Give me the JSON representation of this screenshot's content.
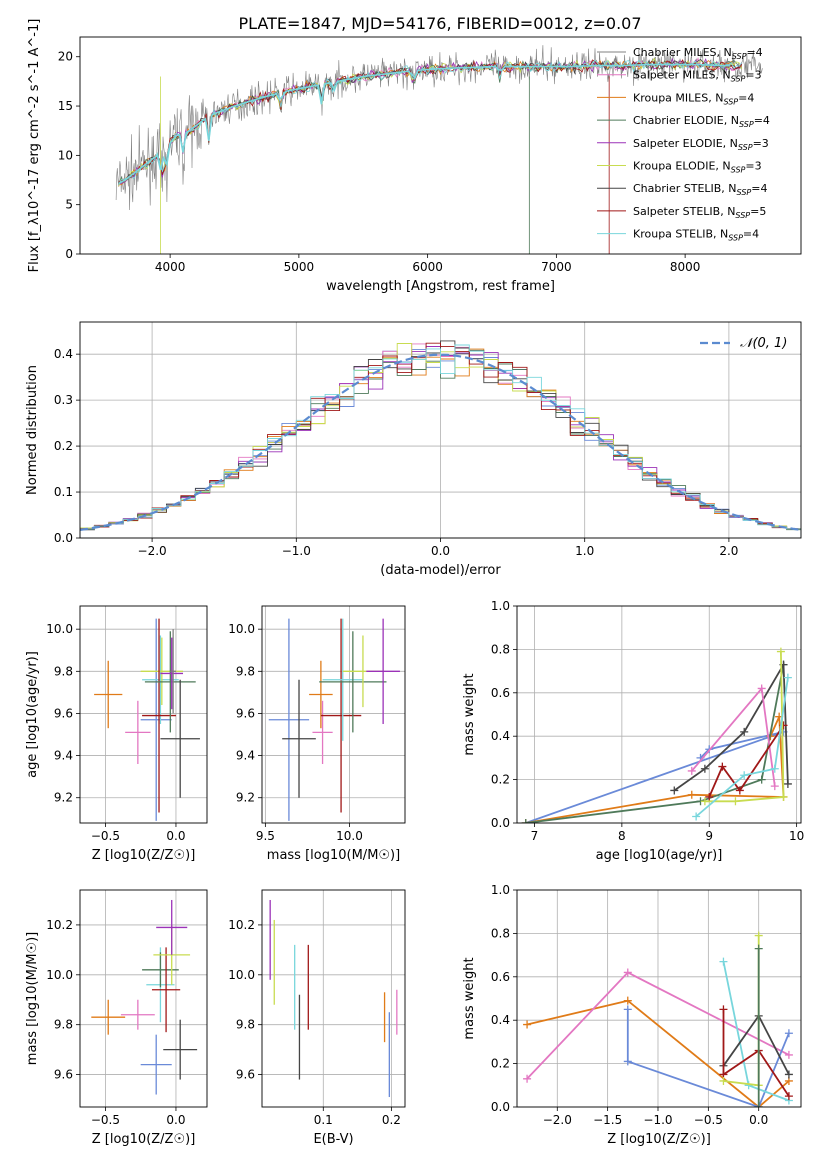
{
  "figure": {
    "title": "PLATE=1847, MJD=54176, FIBERID=0012, z=0.07"
  },
  "models": [
    {
      "name": "Chabrier MILES",
      "nssp": "4",
      "color": "#808080"
    },
    {
      "name": "Salpeter MILES",
      "nssp": "3",
      "color": "#e377c2"
    },
    {
      "name": "Kroupa MILES",
      "nssp": "4",
      "color": "#e07b18"
    },
    {
      "name": "Chabrier ELODIE",
      "nssp": "4",
      "color": "#4f7a5a"
    },
    {
      "name": "Salpeter ELODIE",
      "nssp": "3",
      "color": "#9b32b8"
    },
    {
      "name": "Kroupa ELODIE",
      "nssp": "3",
      "color": "#c8dc50"
    },
    {
      "name": "Chabrier STELIB",
      "nssp": "4",
      "color": "#454545"
    },
    {
      "name": "Salpeter STELIB",
      "nssp": "5",
      "color": "#a01818"
    },
    {
      "name": "Kroupa STELIB",
      "nssp": "4",
      "color": "#78d6dc"
    }
  ],
  "extra_colors": {
    "blue": "#6a8ad8",
    "normal_curve": "#5b8bd0"
  },
  "chart_data": [
    {
      "id": "spectrum",
      "type": "line",
      "xlabel": "wavelength [Angstrom, rest frame]",
      "ylabel": "Flux [f_λ10^-17 erg cm^-2 s^-1 A^-1]",
      "xlim": [
        3300,
        8900
      ],
      "ylim": [
        0,
        22
      ],
      "xticks": [
        4000,
        5000,
        6000,
        7000,
        8000
      ],
      "yticks": [
        0,
        5,
        10,
        15,
        20
      ],
      "legend": "upper right",
      "continuum": {
        "x": [
          3580,
          3650,
          3750,
          3850,
          3950,
          4050,
          4150,
          4300,
          4500,
          4700,
          4900,
          5100,
          5300,
          5500,
          5700,
          5900,
          6100,
          6300,
          6500,
          6700,
          6900,
          7100,
          7300,
          7500,
          7700,
          7900,
          8100,
          8300,
          8500,
          8600
        ],
        "y": [
          7.0,
          7.5,
          8.5,
          9.5,
          10.5,
          12.0,
          12.5,
          14.0,
          15.0,
          15.8,
          16.5,
          17.0,
          17.5,
          18.0,
          18.3,
          18.6,
          18.8,
          18.9,
          19.0,
          19.0,
          19.0,
          19.0,
          19.1,
          19.1,
          19.2,
          19.2,
          19.2,
          19.1,
          19.0,
          19.0
        ]
      }
    },
    {
      "id": "residuals",
      "type": "step",
      "xlabel": "(data-model)/error",
      "ylabel": "Normed distribution",
      "xlim": [
        -2.5,
        2.5
      ],
      "ylim": [
        0,
        0.47
      ],
      "xticks": [
        -2,
        -1,
        0,
        1,
        2
      ],
      "yticks": [
        0.0,
        0.1,
        0.2,
        0.3,
        0.4
      ],
      "bin_width": 0.1,
      "normal_label": "𝒩(0, 1)",
      "legend": "upper right"
    },
    {
      "id": "age_vs_Z",
      "type": "errorbar",
      "xlabel": "Z [log10(Z/Z☉)]",
      "ylabel": "age  [log10(age/yr)]",
      "xlim": [
        -0.68,
        0.22
      ],
      "ylim": [
        9.08,
        10.11
      ],
      "xticks": [
        -0.5,
        0.0
      ],
      "yticks": [
        9.2,
        9.4,
        9.6,
        9.8,
        10.0
      ],
      "points": [
        {
          "c": 2,
          "x": -0.48,
          "xe": 0.1,
          "y": 9.69,
          "ye": 0.16
        },
        {
          "c": 1,
          "x": -0.27,
          "xe": 0.09,
          "y": 9.51,
          "ye": 0.15
        },
        {
          "c": 9,
          "x": -0.14,
          "xe": 0.11,
          "y": 9.57,
          "ye": 0.48
        },
        {
          "c": 8,
          "x": -0.11,
          "xe": 0.13,
          "y": 9.76,
          "ye": 0.21
        },
        {
          "c": 5,
          "x": -0.1,
          "xe": 0.15,
          "y": 9.8,
          "ye": 0.16
        },
        {
          "c": 7,
          "x": -0.12,
          "xe": 0.12,
          "y": 9.59,
          "ye": 0.46
        },
        {
          "c": 3,
          "x": -0.04,
          "xe": 0.18,
          "y": 9.75,
          "ye": 0.24
        },
        {
          "c": 4,
          "x": -0.03,
          "xe": 0.08,
          "y": 9.79,
          "ye": 0.17
        },
        {
          "c": 6,
          "x": 0.03,
          "xe": 0.14,
          "y": 9.48,
          "ye": 0.28
        },
        {
          "c": 0,
          "x": -0.02,
          "xe": 0.02,
          "y": 9.8,
          "ye": 0.2
        }
      ]
    },
    {
      "id": "age_vs_mass",
      "type": "errorbar",
      "xlabel": "mass [log10(M/M☉)]",
      "ylabel": "",
      "xlim": [
        9.48,
        10.33
      ],
      "ylim": [
        9.08,
        10.11
      ],
      "xticks": [
        9.5,
        10.0
      ],
      "yticks": [
        9.2,
        9.4,
        9.6,
        9.8,
        10.0
      ],
      "points": [
        {
          "c": 9,
          "x": 9.64,
          "xe": 0.12,
          "y": 9.57,
          "ye": 0.48
        },
        {
          "c": 6,
          "x": 9.7,
          "xe": 0.1,
          "y": 9.48,
          "ye": 0.28
        },
        {
          "c": 2,
          "x": 9.83,
          "xe": 0.07,
          "y": 9.69,
          "ye": 0.16
        },
        {
          "c": 1,
          "x": 9.84,
          "xe": 0.06,
          "y": 9.51,
          "ye": 0.15
        },
        {
          "c": 7,
          "x": 9.95,
          "xe": 0.12,
          "y": 9.59,
          "ye": 0.46
        },
        {
          "c": 8,
          "x": 9.96,
          "xe": 0.12,
          "y": 9.76,
          "ye": 0.29
        },
        {
          "c": 3,
          "x": 10.02,
          "xe": 0.2,
          "y": 9.75,
          "ye": 0.24
        },
        {
          "c": 5,
          "x": 10.08,
          "xe": 0.12,
          "y": 9.8,
          "ye": 0.17
        },
        {
          "c": 4,
          "x": 10.2,
          "xe": 0.1,
          "y": 9.8,
          "ye": 0.25
        }
      ]
    },
    {
      "id": "weight_vs_age",
      "type": "line",
      "xlabel": "age  [log10(age/yr)]",
      "ylabel": "mass weight",
      "xlim": [
        6.8,
        10.05
      ],
      "ylim": [
        0,
        1
      ],
      "xticks": [
        7,
        8,
        9,
        10
      ],
      "yticks": [
        0.0,
        0.2,
        0.4,
        0.6,
        0.8,
        1.0
      ],
      "series": [
        {
          "c": 9,
          "x": [
            6.9,
            9.85,
            9.0,
            8.9
          ],
          "y": [
            0.0,
            0.42,
            0.34,
            0.3
          ]
        },
        {
          "c": 2,
          "x": [
            6.9,
            8.8,
            9.85,
            9.8,
            9.7
          ],
          "y": [
            0.0,
            0.13,
            0.12,
            0.49,
            0.4
          ]
        },
        {
          "c": 3,
          "x": [
            6.9,
            8.9,
            9.6,
            9.85
          ],
          "y": [
            0.0,
            0.1,
            0.2,
            0.73
          ]
        },
        {
          "c": 6,
          "x": [
            8.6,
            8.95,
            9.4,
            9.85,
            9.9
          ],
          "y": [
            0.15,
            0.25,
            0.42,
            0.73,
            0.18
          ]
        },
        {
          "c": 1,
          "x": [
            8.8,
            9.6,
            9.75
          ],
          "y": [
            0.24,
            0.62,
            0.17
          ]
        },
        {
          "c": 7,
          "x": [
            9.0,
            9.15,
            9.35,
            9.85
          ],
          "y": [
            0.12,
            0.26,
            0.15,
            0.45
          ]
        },
        {
          "c": 5,
          "x": [
            8.95,
            9.3,
            9.85,
            9.82
          ],
          "y": [
            0.1,
            0.1,
            0.12,
            0.79
          ]
        },
        {
          "c": 8,
          "x": [
            8.85,
            9.4,
            9.75,
            9.9
          ],
          "y": [
            0.03,
            0.22,
            0.25,
            0.67
          ]
        }
      ]
    },
    {
      "id": "mass_vs_Z",
      "type": "errorbar",
      "xlabel": "Z [log10(Z/Z☉)]",
      "ylabel": "mass [log10(M/M☉)]",
      "xlim": [
        -0.68,
        0.22
      ],
      "ylim": [
        9.47,
        10.34
      ],
      "xticks": [
        -0.5,
        0.0
      ],
      "yticks": [
        9.6,
        9.8,
        10.0,
        10.2
      ],
      "points": [
        {
          "c": 2,
          "x": -0.48,
          "xe": 0.12,
          "y": 9.83,
          "ye": 0.07
        },
        {
          "c": 1,
          "x": -0.27,
          "xe": 0.12,
          "y": 9.84,
          "ye": 0.06
        },
        {
          "c": 9,
          "x": -0.14,
          "xe": 0.11,
          "y": 9.64,
          "ye": 0.12
        },
        {
          "c": 8,
          "x": -0.11,
          "xe": 0.1,
          "y": 9.96,
          "ye": 0.15
        },
        {
          "c": 3,
          "x": -0.11,
          "xe": 0.13,
          "y": 10.02,
          "ye": 0.07
        },
        {
          "c": 7,
          "x": -0.07,
          "xe": 0.1,
          "y": 9.94,
          "ye": 0.17
        },
        {
          "c": 5,
          "x": -0.03,
          "xe": 0.13,
          "y": 10.08,
          "ye": 0.12
        },
        {
          "c": 4,
          "x": -0.03,
          "xe": 0.11,
          "y": 10.19,
          "ye": 0.11
        },
        {
          "c": 6,
          "x": 0.03,
          "xe": 0.12,
          "y": 9.7,
          "ye": 0.12
        }
      ]
    },
    {
      "id": "mass_vs_EBV",
      "type": "errorbar",
      "xlabel": "E(B-V)",
      "ylabel": "",
      "xlim": [
        0.01,
        0.22
      ],
      "ylim": [
        9.47,
        10.34
      ],
      "xticks": [
        0.1,
        0.2
      ],
      "yticks": [
        9.6,
        9.8,
        10.0,
        10.2
      ],
      "points": [
        {
          "c": 4,
          "x": 0.022,
          "xe": 0.0,
          "y": 10.14,
          "ye": 0.16
        },
        {
          "c": 5,
          "x": 0.028,
          "xe": 0.0,
          "y": 10.05,
          "ye": 0.17
        },
        {
          "c": 8,
          "x": 0.058,
          "xe": 0.0,
          "y": 9.95,
          "ye": 0.17
        },
        {
          "c": 6,
          "x": 0.065,
          "xe": 0.0,
          "y": 9.75,
          "ye": 0.17
        },
        {
          "c": 7,
          "x": 0.078,
          "xe": 0.0,
          "y": 9.95,
          "ye": 0.17
        },
        {
          "c": 2,
          "x": 0.19,
          "xe": 0.0,
          "y": 9.83,
          "ye": 0.1
        },
        {
          "c": 9,
          "x": 0.197,
          "xe": 0.0,
          "y": 9.68,
          "ye": 0.17
        },
        {
          "c": 1,
          "x": 0.208,
          "xe": 0.0,
          "y": 9.85,
          "ye": 0.09
        }
      ]
    },
    {
      "id": "weight_vs_Z",
      "type": "line",
      "xlabel": "Z [log10(Z/Z☉)]",
      "ylabel": "mass weight",
      "xlim": [
        -2.4,
        0.42
      ],
      "ylim": [
        0,
        1
      ],
      "xticks": [
        -2.0,
        -1.5,
        -1.0,
        -0.5,
        0.0
      ],
      "yticks": [
        0.0,
        0.2,
        0.4,
        0.6,
        0.8,
        1.0
      ],
      "series": [
        {
          "c": 2,
          "x": [
            -2.3,
            -1.3,
            0.0,
            0.3
          ],
          "y": [
            0.38,
            0.49,
            0.0,
            0.12
          ]
        },
        {
          "c": 1,
          "x": [
            -2.3,
            -1.3,
            0.3
          ],
          "y": [
            0.13,
            0.62,
            0.24
          ]
        },
        {
          "c": 9,
          "x": [
            -1.3,
            -1.3,
            0.0,
            0.3
          ],
          "y": [
            0.45,
            0.21,
            0.0,
            0.34
          ]
        },
        {
          "c": 8,
          "x": [
            -0.35,
            -0.1,
            0.3
          ],
          "y": [
            0.67,
            0.1,
            0.03
          ]
        },
        {
          "c": 6,
          "x": [
            -0.35,
            0.0,
            0.3
          ],
          "y": [
            0.19,
            0.42,
            0.15
          ]
        },
        {
          "c": 7,
          "x": [
            -0.35,
            -0.35,
            0.0,
            0.3
          ],
          "y": [
            0.45,
            0.15,
            0.26,
            0.05
          ]
        },
        {
          "c": 5,
          "x": [
            -0.35,
            0.0,
            0.0
          ],
          "y": [
            0.12,
            0.1,
            0.79
          ]
        },
        {
          "c": 3,
          "x": [
            0.0,
            0.0
          ],
          "y": [
            0.0,
            0.73
          ]
        }
      ]
    }
  ]
}
